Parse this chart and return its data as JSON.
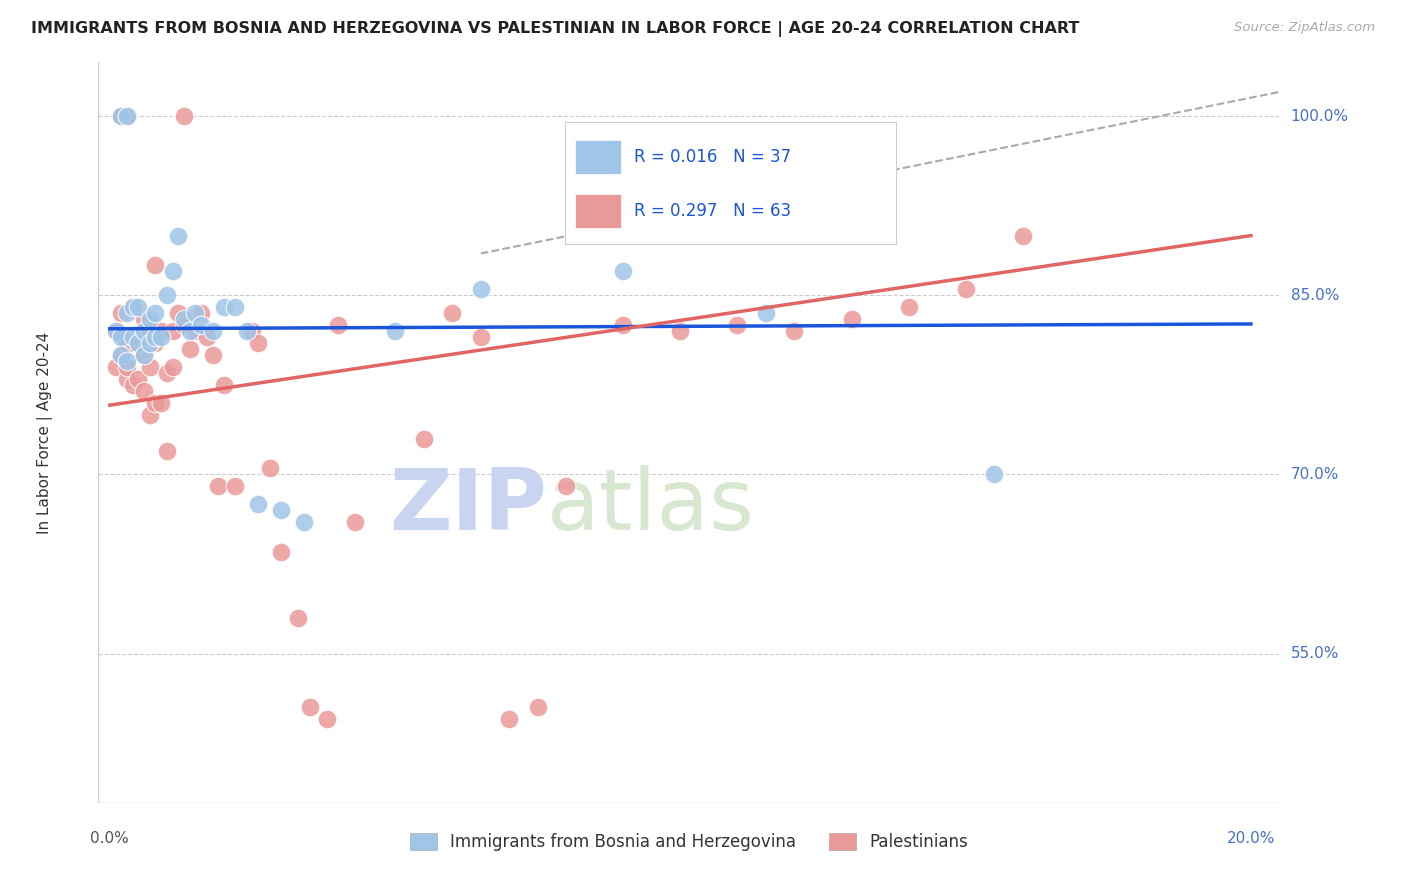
{
  "title": "IMMIGRANTS FROM BOSNIA AND HERZEGOVINA VS PALESTINIAN IN LABOR FORCE | AGE 20-24 CORRELATION CHART",
  "source": "Source: ZipAtlas.com",
  "ylabel": "In Labor Force | Age 20-24",
  "ytick_labels": [
    "55.0%",
    "70.0%",
    "85.0%",
    "100.0%"
  ],
  "ytick_values": [
    0.55,
    0.7,
    0.85,
    1.0
  ],
  "xlim": [
    -0.002,
    0.205
  ],
  "ylim": [
    0.425,
    1.045
  ],
  "blue_color": "#9fc5e8",
  "pink_color": "#ea9999",
  "blue_line_color": "#1a56db",
  "pink_line_color": "#e06666",
  "dash_line_color": "#aaaaaa",
  "grid_color": "#cccccc",
  "r_blue": "0.016",
  "n_blue": "37",
  "r_pink": "0.297",
  "n_pink": "63",
  "legend_label_blue": "Immigrants from Bosnia and Herzegovina",
  "legend_label_pink": "Palestinians",
  "blue_scatter_x": [
    0.001,
    0.002,
    0.002,
    0.003,
    0.003,
    0.004,
    0.004,
    0.005,
    0.005,
    0.006,
    0.006,
    0.007,
    0.007,
    0.008,
    0.008,
    0.009,
    0.01,
    0.011,
    0.012,
    0.013,
    0.014,
    0.015,
    0.016,
    0.018,
    0.02,
    0.022,
    0.024,
    0.026,
    0.03,
    0.034,
    0.05,
    0.065,
    0.09,
    0.115,
    0.155,
    0.002,
    0.003
  ],
  "blue_scatter_y": [
    0.82,
    0.815,
    0.8,
    0.835,
    0.795,
    0.84,
    0.815,
    0.84,
    0.81,
    0.82,
    0.8,
    0.83,
    0.81,
    0.815,
    0.835,
    0.815,
    0.85,
    0.87,
    0.9,
    0.83,
    0.82,
    0.835,
    0.825,
    0.82,
    0.84,
    0.84,
    0.82,
    0.675,
    0.67,
    0.66,
    0.82,
    0.855,
    0.87,
    0.835,
    0.7,
    1.0,
    1.0
  ],
  "pink_scatter_x": [
    0.001,
    0.001,
    0.002,
    0.002,
    0.003,
    0.003,
    0.003,
    0.004,
    0.004,
    0.004,
    0.005,
    0.005,
    0.006,
    0.006,
    0.006,
    0.007,
    0.007,
    0.007,
    0.008,
    0.008,
    0.008,
    0.009,
    0.009,
    0.01,
    0.01,
    0.011,
    0.011,
    0.012,
    0.013,
    0.014,
    0.015,
    0.016,
    0.017,
    0.018,
    0.019,
    0.02,
    0.022,
    0.025,
    0.026,
    0.028,
    0.03,
    0.033,
    0.035,
    0.038,
    0.04,
    0.043,
    0.055,
    0.06,
    0.065,
    0.07,
    0.075,
    0.08,
    0.09,
    0.1,
    0.11,
    0.12,
    0.13,
    0.14,
    0.15,
    0.16,
    0.002,
    0.003,
    0.013
  ],
  "pink_scatter_y": [
    0.79,
    0.82,
    0.8,
    0.835,
    0.78,
    0.81,
    0.79,
    0.775,
    0.81,
    0.84,
    0.78,
    0.81,
    0.77,
    0.8,
    0.83,
    0.75,
    0.79,
    0.82,
    0.76,
    0.81,
    0.875,
    0.76,
    0.82,
    0.72,
    0.785,
    0.79,
    0.82,
    0.835,
    0.825,
    0.805,
    0.82,
    0.835,
    0.815,
    0.8,
    0.69,
    0.775,
    0.69,
    0.82,
    0.81,
    0.705,
    0.635,
    0.58,
    0.505,
    0.495,
    0.825,
    0.66,
    0.73,
    0.835,
    0.815,
    0.495,
    0.505,
    0.69,
    0.825,
    0.82,
    0.825,
    0.82,
    0.83,
    0.84,
    0.855,
    0.9,
    1.0,
    1.0,
    1.0
  ],
  "blue_trend": [
    0.0,
    0.2,
    0.822,
    0.826
  ],
  "pink_trend": [
    0.0,
    0.2,
    0.758,
    0.9
  ],
  "dash_trend": [
    0.065,
    0.215,
    0.885,
    1.03
  ],
  "watermark_zip": "ZIP",
  "watermark_atlas": "atlas",
  "background_color": "#ffffff"
}
